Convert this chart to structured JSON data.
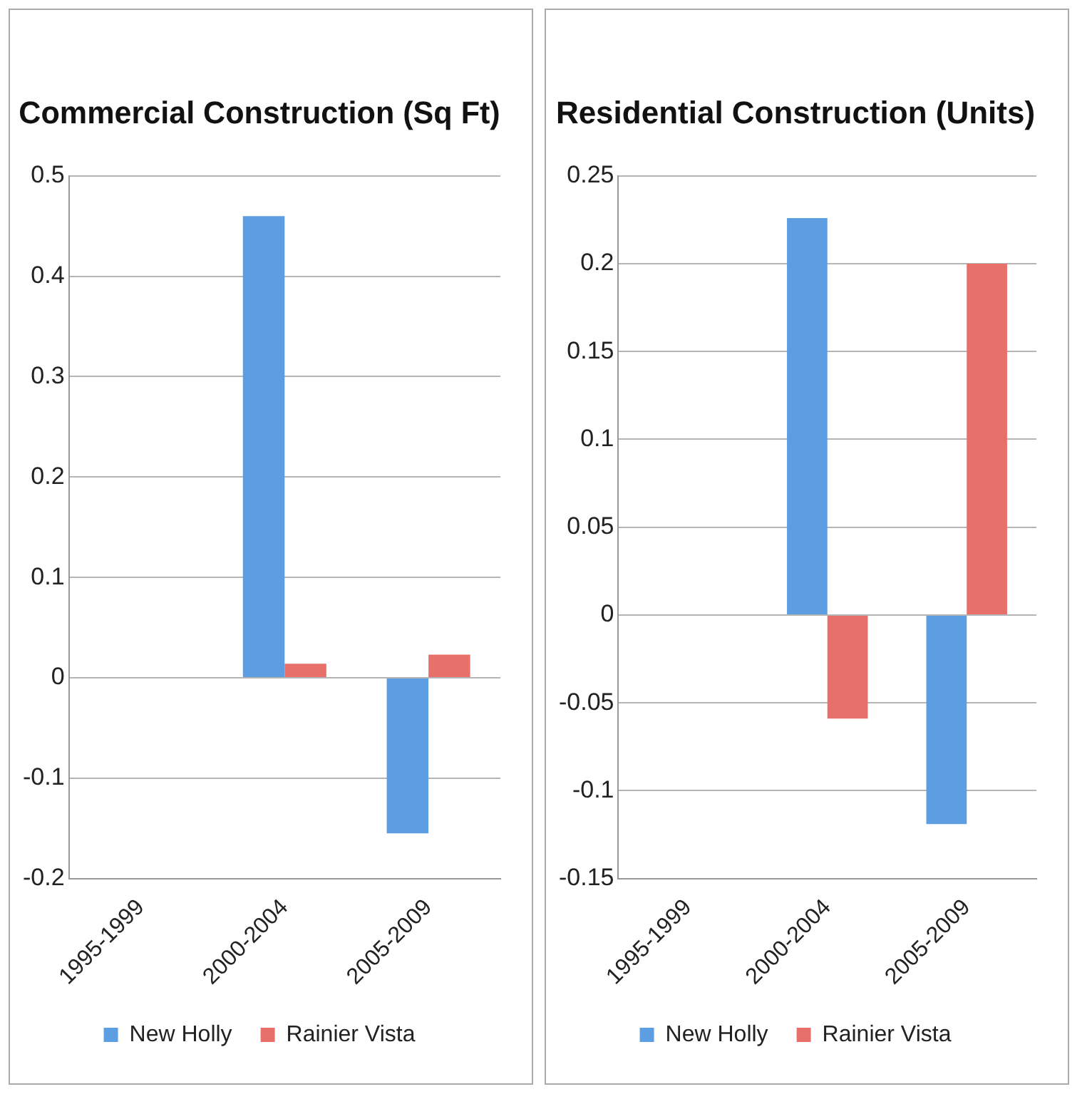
{
  "chart_data": [
    {
      "type": "bar",
      "title": "Commercial Construction (Sq Ft)",
      "categories": [
        "1995-1999",
        "2000-2004",
        "2005-2009"
      ],
      "series": [
        {
          "name": "New Holly",
          "color": "#5d9de2",
          "values": [
            null,
            0.46,
            -0.155
          ]
        },
        {
          "name": "Rainier Vista",
          "color": "#e8706a",
          "values": [
            null,
            0.014,
            0.023
          ]
        }
      ],
      "ylim": [
        -0.2,
        0.5
      ],
      "yticks": [
        -0.2,
        -0.1,
        0,
        0.1,
        0.2,
        0.3,
        0.4,
        0.5
      ],
      "grid": "y",
      "legend": "bottom"
    },
    {
      "type": "bar",
      "title": "Residential Construction (Units)",
      "categories": [
        "1995-1999",
        "2000-2004",
        "2005-2009"
      ],
      "series": [
        {
          "name": "New Holly",
          "color": "#5d9de2",
          "values": [
            null,
            0.226,
            -0.119
          ]
        },
        {
          "name": "Rainier Vista",
          "color": "#e8706a",
          "values": [
            null,
            -0.059,
            0.2
          ]
        }
      ],
      "ylim": [
        -0.15,
        0.25
      ],
      "yticks": [
        -0.15,
        -0.1,
        -0.05,
        0,
        0.05,
        0.1,
        0.15,
        0.2,
        0.25
      ],
      "grid": "y",
      "legend": "bottom"
    }
  ]
}
